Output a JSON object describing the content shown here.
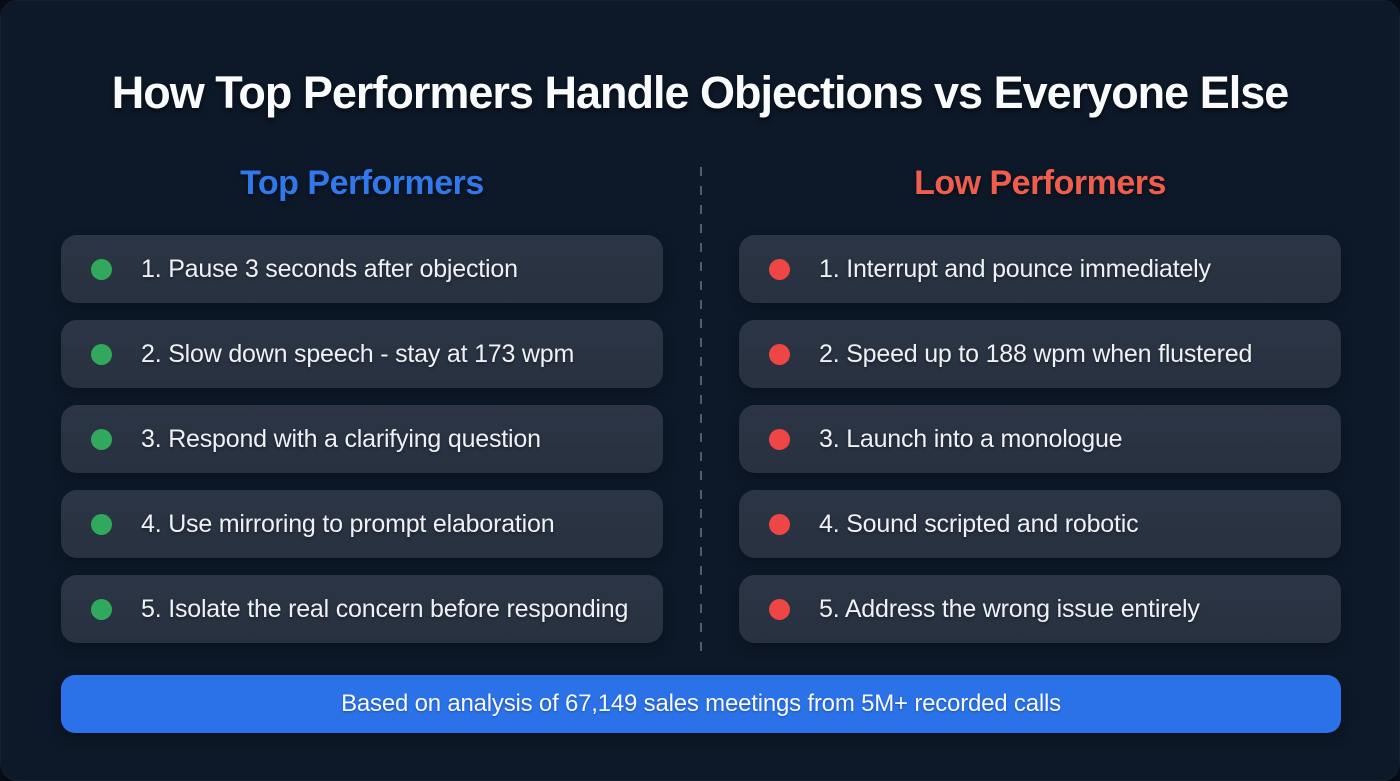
{
  "page": {
    "title": "How Top Performers Handle Objections vs Everyone Else"
  },
  "columns": {
    "top": {
      "header": "Top Performers",
      "accent_color": "#3178eb",
      "dot_color": "#31a95d",
      "dot_icon": "green-dot-icon",
      "items": [
        "1. Pause 3 seconds after objection",
        "2. Slow down speech - stay at 173 wpm",
        "3. Respond with a clarifying question",
        "4. Use mirroring to prompt elaboration",
        "5. Isolate the real concern before responding"
      ]
    },
    "low": {
      "header": "Low Performers",
      "accent_color": "#ef5e4d",
      "dot_color": "#ee4545",
      "dot_icon": "red-dot-icon",
      "items": [
        "1. Interrupt and pounce immediately",
        "2. Speed up to 188 wpm when flustered",
        "3. Launch into a monologue",
        "4. Sound scripted and robotic",
        "5. Address the wrong issue entirely"
      ]
    }
  },
  "footer": {
    "banner_text": "Based on analysis of 67,149 sales meetings from 5M+ recorded calls",
    "banner_color": "#2b72e8"
  },
  "colors": {
    "page_background": "#0d1828",
    "card_background": "#2a3342",
    "text": "#eef1f5",
    "divider": "#63718a"
  }
}
